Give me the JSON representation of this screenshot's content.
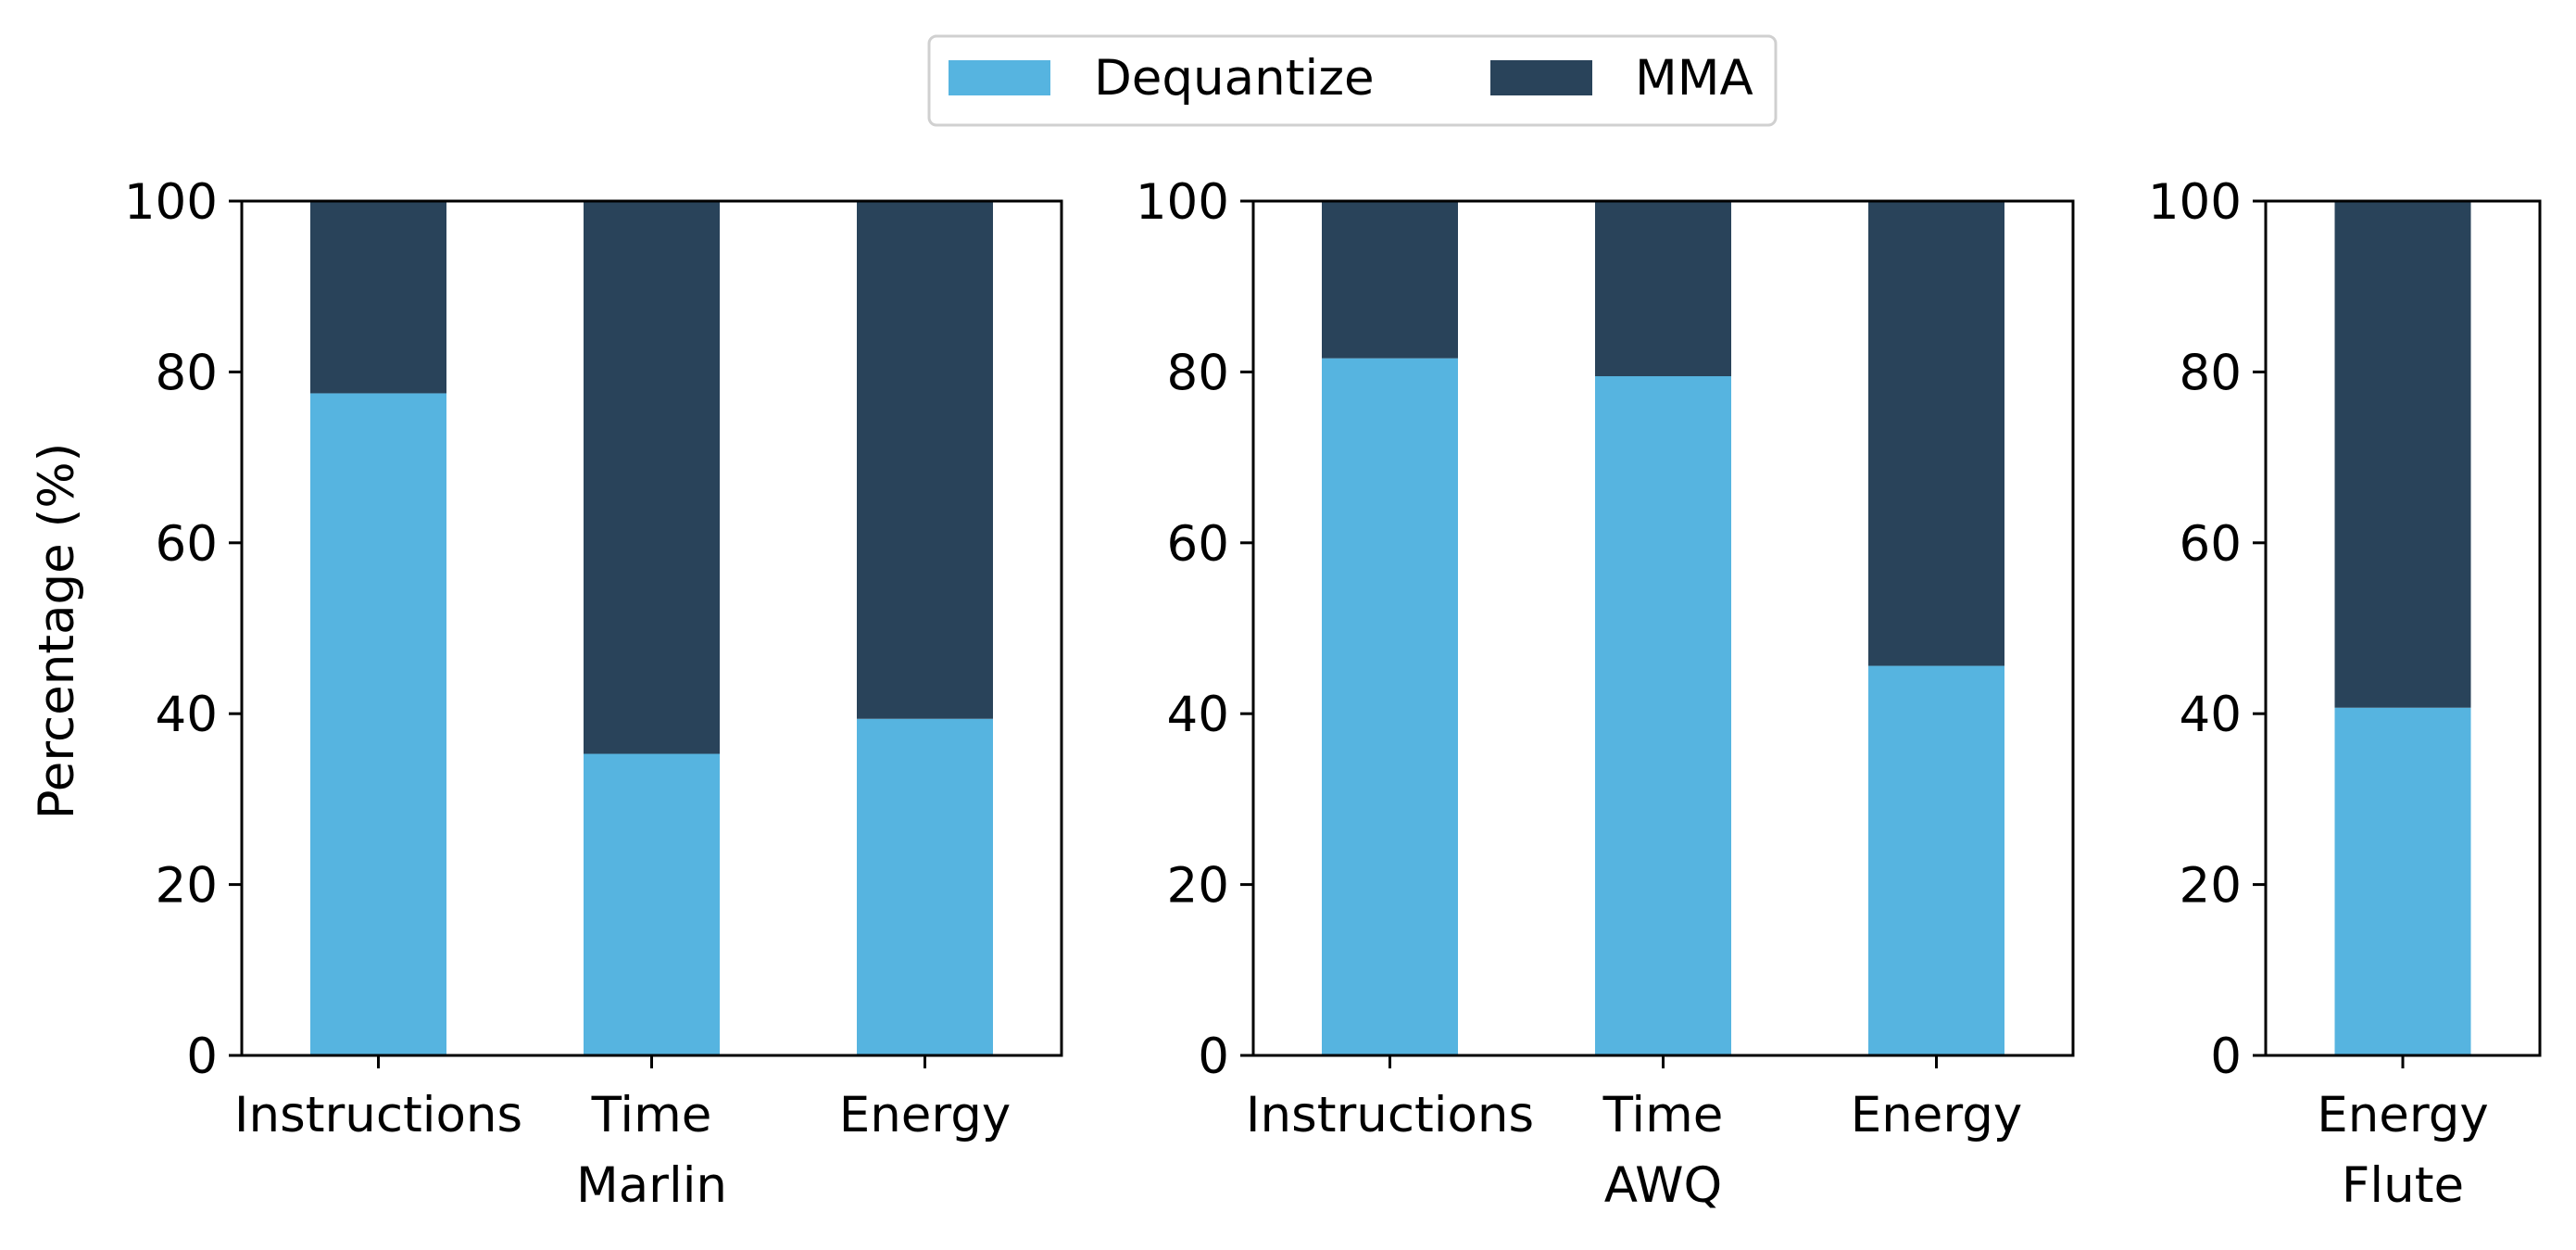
{
  "legend": {
    "placement": "top-center",
    "items": [
      {
        "label": "Dequantize",
        "color": "#56b4e0"
      },
      {
        "label": "MMA",
        "color": "#29435a"
      }
    ]
  },
  "ylabel": "Percentage (%)",
  "chart_data": [
    {
      "type": "bar",
      "stacked": true,
      "xlabel": "Marlin",
      "categories": [
        "Instructions",
        "Time",
        "Energy"
      ],
      "series": [
        {
          "name": "Dequantize",
          "values": [
            77.5,
            35.3,
            39.4
          ]
        },
        {
          "name": "MMA",
          "values": [
            22.5,
            64.7,
            60.6
          ]
        }
      ],
      "ylim": [
        0,
        100
      ],
      "yticks": [
        0,
        20,
        40,
        60,
        80,
        100
      ]
    },
    {
      "type": "bar",
      "stacked": true,
      "xlabel": "AWQ",
      "categories": [
        "Instructions",
        "Time",
        "Energy"
      ],
      "series": [
        {
          "name": "Dequantize",
          "values": [
            81.6,
            79.5,
            45.6
          ]
        },
        {
          "name": "MMA",
          "values": [
            18.4,
            20.5,
            54.4
          ]
        }
      ],
      "ylim": [
        0,
        100
      ],
      "yticks": [
        0,
        20,
        40,
        60,
        80,
        100
      ]
    },
    {
      "type": "bar",
      "stacked": true,
      "xlabel": "Flute",
      "categories": [
        "Energy"
      ],
      "series": [
        {
          "name": "Dequantize",
          "values": [
            40.7
          ]
        },
        {
          "name": "MMA",
          "values": [
            59.3
          ]
        }
      ],
      "ylim": [
        0,
        100
      ],
      "yticks": [
        0,
        20,
        40,
        60,
        80,
        100
      ]
    }
  ]
}
